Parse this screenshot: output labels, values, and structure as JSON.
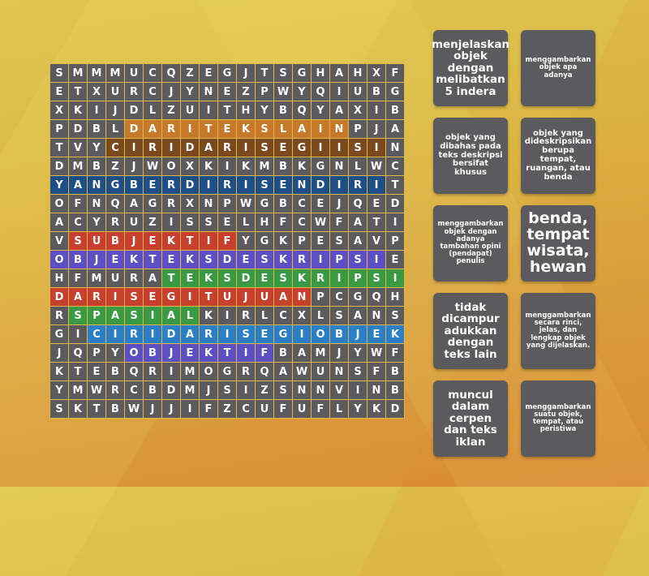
{
  "game": {
    "type": "wordsearch",
    "colors": {
      "cell_default": "#5B5A5C",
      "grid_border": "#E2B54A",
      "orange": "#C7792A",
      "brown": "#7A4A1E",
      "navy": "#1E4E86",
      "red": "#C7402D",
      "violet": "#5C4FC4",
      "green": "#3A9A44",
      "blue": "#2A7FC7"
    },
    "grid": [
      "SMMMUCQZEGJTSGHAHXF",
      "ETXURCJYNEZPWYQIUBG",
      "XKIJDLZUITHYBQYAXIB",
      "PDBLDARITEKSLAINPJA",
      "TVYCIRIDARISEGIISIN",
      "DMBZJWOXKIKMBKGNLWC",
      "YANGBERDIRISENDIRIT",
      "OFNQAGRXNPWGBCEJQED",
      "ACYRUZISSELHFCWFATI",
      "VSUBJEKTIFYGKPESAVP",
      "OBJEKTEKSDESKRIPSIE",
      "HFMURATEKSDESKRIPSI",
      "DARISEGITUJUANPCGQH",
      "RSPASIALKIRLCXLSANS",
      "GICIRIDARISEGIOBJEK",
      "JQPYOBJEKTIFBAMJYWF",
      "KTEBQRIMOGRQAWUNSFB",
      "YMWRCBDMJSIZSNNVINB",
      "SKTBWJJIFZCUFUFLYKD"
    ],
    "rows": [
      [
        "S",
        "M",
        "M",
        "M",
        "U",
        "C",
        "Q",
        "Z",
        "E",
        "G",
        "J",
        "T",
        "S",
        "G",
        "H",
        "A",
        "H",
        "X",
        "F"
      ],
      [
        "E",
        "T",
        "X",
        "U",
        "R",
        "C",
        "J",
        "Y",
        "N",
        "E",
        "Z",
        "P",
        "W",
        "Y",
        "Q",
        "I",
        "U",
        "B",
        "G"
      ],
      [
        "X",
        "K",
        "I",
        "J",
        "D",
        "L",
        "Z",
        "U",
        "I",
        "T",
        "H",
        "Y",
        "B",
        "Q",
        "Y",
        "A",
        "X",
        "I",
        "B"
      ],
      [
        "P",
        "D",
        "B",
        "L",
        "D",
        "A",
        "R",
        "I",
        "T",
        "E",
        "K",
        "S",
        "L",
        "A",
        "I",
        "N",
        "P",
        "J",
        "A"
      ],
      [
        "T",
        "V",
        "Y",
        "C",
        "I",
        "R",
        "I",
        "D",
        "A",
        "R",
        "I",
        "S",
        "E",
        "G",
        "I",
        "I",
        "S",
        "I",
        "N"
      ],
      [
        "D",
        "M",
        "B",
        "Z",
        "J",
        "W",
        "O",
        "X",
        "K",
        "I",
        "K",
        "M",
        "B",
        "K",
        "G",
        "N",
        "L",
        "W",
        "C"
      ],
      [
        "Y",
        "A",
        "N",
        "G",
        "B",
        "E",
        "R",
        "D",
        "I",
        "R",
        "I",
        "S",
        "E",
        "N",
        "D",
        "I",
        "R",
        "I",
        "T"
      ],
      [
        "O",
        "F",
        "N",
        "Q",
        "A",
        "G",
        "R",
        "X",
        "N",
        "P",
        "W",
        "G",
        "B",
        "C",
        "E",
        "J",
        "Q",
        "E",
        "D"
      ],
      [
        "A",
        "C",
        "Y",
        "R",
        "U",
        "Z",
        "I",
        "S",
        "S",
        "E",
        "L",
        "H",
        "F",
        "C",
        "W",
        "F",
        "A",
        "T",
        "I"
      ],
      [
        "V",
        "S",
        "U",
        "B",
        "J",
        "E",
        "K",
        "T",
        "I",
        "F",
        "Y",
        "G",
        "K",
        "P",
        "E",
        "S",
        "A",
        "V",
        "P"
      ],
      [
        "O",
        "B",
        "J",
        "E",
        "K",
        "T",
        "E",
        "K",
        "S",
        "D",
        "E",
        "S",
        "K",
        "R",
        "I",
        "P",
        "S",
        "I",
        "E"
      ],
      [
        "H",
        "F",
        "M",
        "U",
        "R",
        "A",
        "T",
        "E",
        "K",
        "S",
        "D",
        "E",
        "S",
        "K",
        "R",
        "I",
        "P",
        "S",
        "I"
      ],
      [
        "D",
        "A",
        "R",
        "I",
        "S",
        "E",
        "G",
        "I",
        "T",
        "U",
        "J",
        "U",
        "A",
        "N",
        "P",
        "C",
        "G",
        "Q",
        "H"
      ],
      [
        "R",
        "S",
        "P",
        "A",
        "S",
        "I",
        "A",
        "L",
        "K",
        "I",
        "R",
        "L",
        "C",
        "X",
        "L",
        "S",
        "A",
        "N",
        "S"
      ],
      [
        "G",
        "I",
        "C",
        "I",
        "R",
        "I",
        "D",
        "A",
        "R",
        "I",
        "S",
        "E",
        "G",
        "I",
        "O",
        "B",
        "J",
        "E",
        "K"
      ],
      [
        "J",
        "Q",
        "P",
        "Y",
        "O",
        "B",
        "J",
        "E",
        "K",
        "T",
        "I",
        "F",
        "B",
        "A",
        "M",
        "J",
        "Y",
        "W",
        "F"
      ],
      [
        "K",
        "T",
        "E",
        "B",
        "Q",
        "R",
        "I",
        "M",
        "O",
        "G",
        "R",
        "Q",
        "A",
        "W",
        "U",
        "N",
        "S",
        "F",
        "B"
      ],
      [
        "Y",
        "M",
        "W",
        "R",
        "C",
        "B",
        "D",
        "M",
        "J",
        "S",
        "I",
        "Z",
        "S",
        "N",
        "N",
        "V",
        "I",
        "N",
        "B"
      ],
      [
        "S",
        "K",
        "T",
        "B",
        "W",
        "J",
        "J",
        "I",
        "F",
        "Z",
        "C",
        "U",
        "F",
        "U",
        "F",
        "L",
        "Y",
        "K",
        "D"
      ]
    ],
    "found_words": [
      {
        "word": "DARITEKSLAIN",
        "row": 3,
        "start": 4,
        "end": 15,
        "color": "orange"
      },
      {
        "word": "CIRIDARISEGIISI",
        "row": 4,
        "start": 3,
        "end": 17,
        "color": "brown"
      },
      {
        "word": "YANGBERDIRISENDIRI",
        "row": 6,
        "start": 0,
        "end": 17,
        "color": "navy"
      },
      {
        "word": "SUBJEKTIF",
        "row": 9,
        "start": 1,
        "end": 9,
        "color": "red"
      },
      {
        "word": "OBJEKTEKSDESKRIPSI",
        "row": 10,
        "start": 0,
        "end": 17,
        "color": "violet"
      },
      {
        "word": "TEKSDESKRIPSI",
        "row": 11,
        "start": 6,
        "end": 18,
        "color": "green"
      },
      {
        "word": "DARISEGITUJUAN",
        "row": 12,
        "start": 0,
        "end": 13,
        "color": "red"
      },
      {
        "word": "SPASIAL",
        "row": 13,
        "start": 1,
        "end": 7,
        "color": "green"
      },
      {
        "word": "CIRIDARISEGIOBJEK",
        "row": 14,
        "start": 2,
        "end": 18,
        "color": "blue"
      },
      {
        "word": "OBJEKTIF",
        "row": 15,
        "start": 4,
        "end": 11,
        "color": "violet"
      }
    ]
  },
  "cards": [
    {
      "text": "menjelaskan objek dengan melibatkan 5 indera",
      "size": "big",
      "col": 0,
      "row": 0
    },
    {
      "text": "menggambarkan objek apa adanya",
      "size": "small",
      "col": 1,
      "row": 0
    },
    {
      "text": "objek yang dibahas pada teks deskripsi bersifat khusus",
      "size": "mid",
      "col": 0,
      "row": 1
    },
    {
      "text": "objek yang dideskripsikan berupa tempat, ruangan, atau benda",
      "size": "mid",
      "col": 1,
      "row": 1
    },
    {
      "text": "menggambarkan objek dengan adanya tambahan opini (pendapat) penulis",
      "size": "small",
      "col": 0,
      "row": 2
    },
    {
      "text": "benda, tempat wisata, hewan",
      "size": "huge",
      "col": 1,
      "row": 2
    },
    {
      "text": "tidak dicampur adukkan dengan teks lain",
      "size": "big",
      "col": 0,
      "row": 3
    },
    {
      "text": "menggambarkan secara rinci, jelas, dan lengkap objek yang dijelaskan.",
      "size": "small",
      "col": 1,
      "row": 3
    },
    {
      "text": "muncul dalam cerpen dan teks iklan",
      "size": "big",
      "col": 0,
      "row": 4
    },
    {
      "text": "menggambarkan suatu objek, tempat, atau peristiwa",
      "size": "small",
      "col": 1,
      "row": 4
    }
  ]
}
